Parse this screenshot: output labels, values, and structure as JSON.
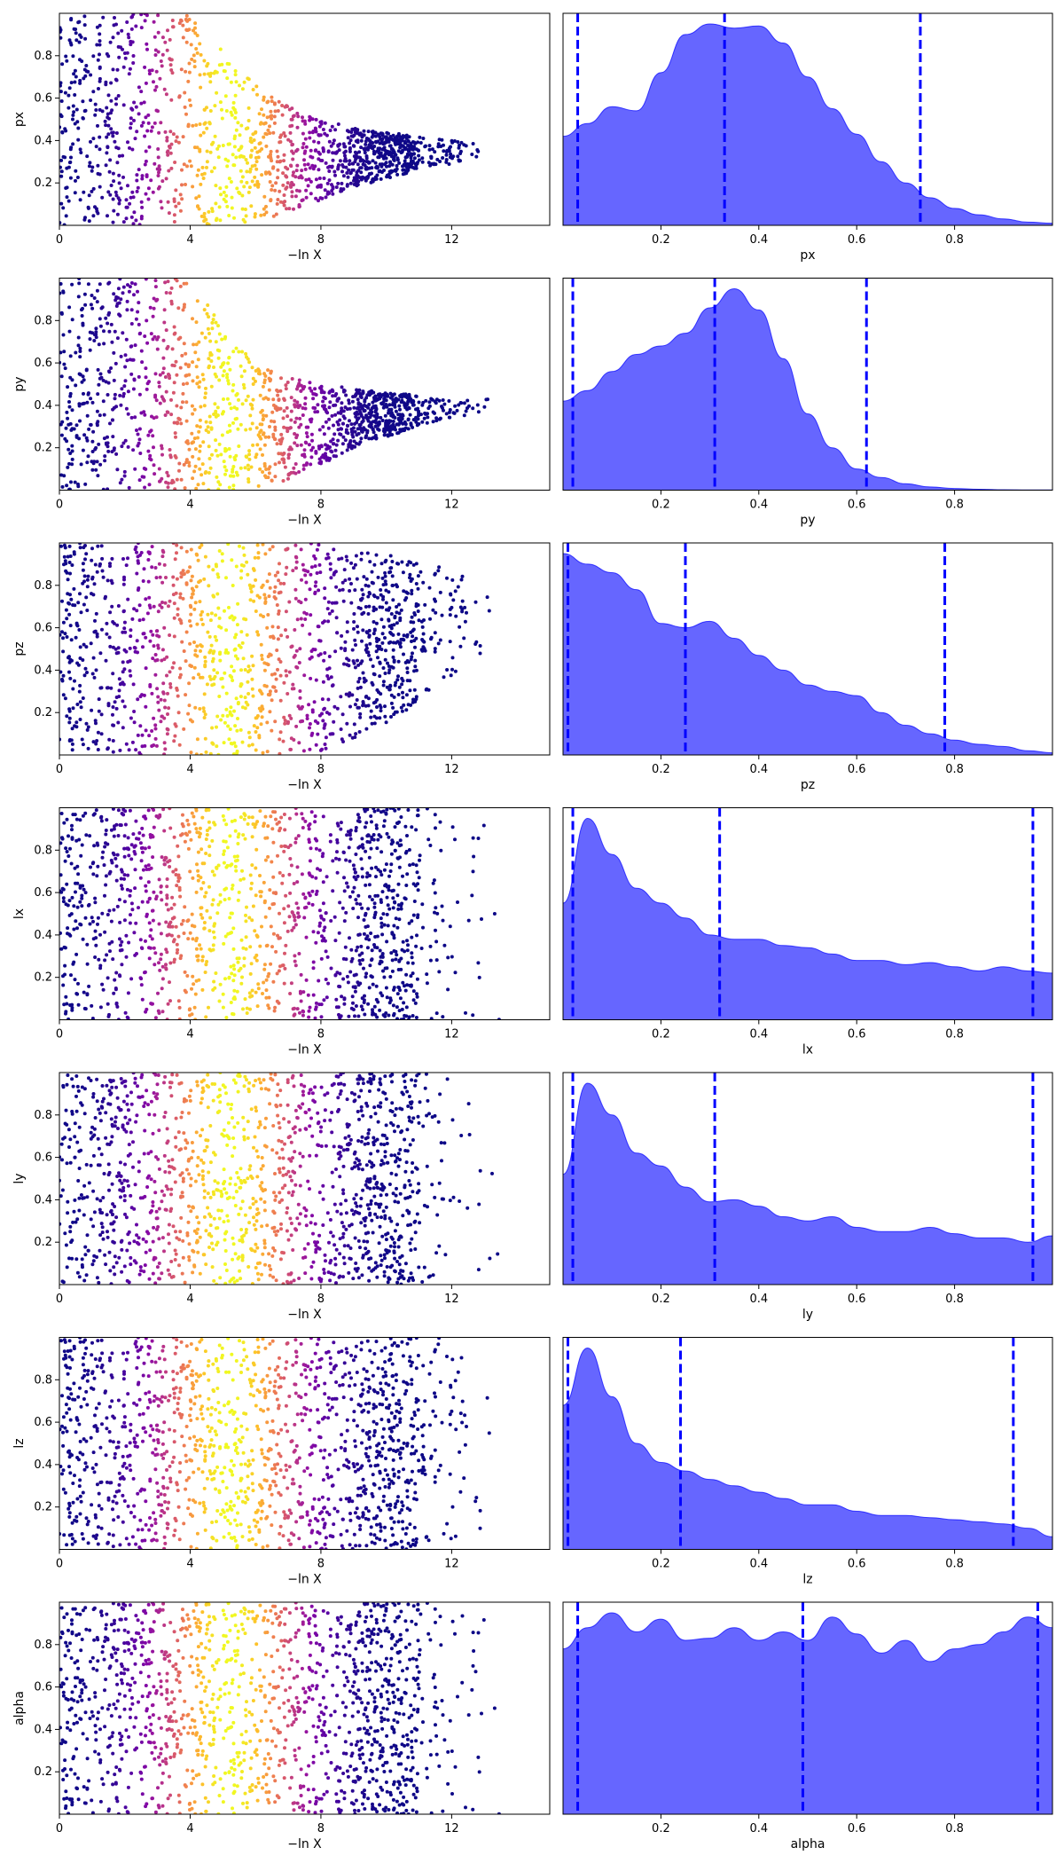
{
  "colors": {
    "kde_fill": "#0000ff",
    "kde_fill_opacity": 0.6,
    "quantile_line": "#0000ff",
    "scatter_colormap": "plasma",
    "axes": "#000000"
  },
  "chart_data": [
    {
      "type": "scatter",
      "name": "px",
      "xlabel": "−ln X",
      "ylabel": "px",
      "xlim": [
        0,
        15
      ],
      "ylim": [
        0,
        1
      ],
      "xticks": [
        "0",
        "4",
        "8",
        "12"
      ],
      "yticks": [
        "0.2",
        "0.4",
        "0.6",
        "0.8"
      ],
      "colormap": "plasma",
      "trend": {
        "x": [
          0,
          4,
          5,
          6,
          7,
          8,
          9,
          10,
          11,
          12,
          13,
          14,
          15
        ],
        "y_min": [
          0,
          0,
          0,
          0.02,
          0.06,
          0.12,
          0.18,
          0.22,
          0.26,
          0.29,
          0.31,
          0.33,
          0.34
        ],
        "y_max": [
          1,
          1,
          0.82,
          0.66,
          0.56,
          0.5,
          0.46,
          0.44,
          0.42,
          0.4,
          0.38,
          0.37,
          0.35
        ]
      }
    },
    {
      "type": "area",
      "name": "px",
      "xlabel": "px",
      "xlim": [
        0,
        1
      ],
      "xticks": [
        "0.2",
        "0.4",
        "0.6",
        "0.8"
      ],
      "x": [
        0.0,
        0.05,
        0.1,
        0.15,
        0.2,
        0.25,
        0.3,
        0.35,
        0.4,
        0.45,
        0.5,
        0.55,
        0.6,
        0.65,
        0.7,
        0.75,
        0.8,
        0.85,
        0.9,
        0.95,
        1.0
      ],
      "density": [
        0.42,
        0.48,
        0.56,
        0.54,
        0.72,
        0.9,
        0.95,
        0.93,
        0.94,
        0.86,
        0.7,
        0.55,
        0.43,
        0.3,
        0.2,
        0.13,
        0.08,
        0.05,
        0.03,
        0.015,
        0.01
      ],
      "quantiles": [
        0.03,
        0.33,
        0.73
      ]
    },
    {
      "type": "scatter",
      "name": "py",
      "xlabel": "−ln X",
      "ylabel": "py",
      "xlim": [
        0,
        15
      ],
      "ylim": [
        0,
        1
      ],
      "xticks": [
        "0",
        "4",
        "8",
        "12"
      ],
      "yticks": [
        "0.2",
        "0.4",
        "0.6",
        "0.8"
      ],
      "colormap": "plasma",
      "trend": {
        "x": [
          0,
          4,
          5,
          6,
          7,
          8,
          9,
          10,
          11,
          12,
          13,
          14,
          15
        ],
        "y_min": [
          0,
          0,
          0,
          0,
          0.05,
          0.12,
          0.2,
          0.25,
          0.3,
          0.34,
          0.37,
          0.39,
          0.4
        ],
        "y_max": [
          1,
          1,
          0.78,
          0.6,
          0.53,
          0.5,
          0.48,
          0.46,
          0.45,
          0.44,
          0.43,
          0.42,
          0.41
        ]
      }
    },
    {
      "type": "area",
      "name": "py",
      "xlabel": "py",
      "xlim": [
        0,
        1
      ],
      "xticks": [
        "0.2",
        "0.4",
        "0.6",
        "0.8"
      ],
      "x": [
        0.0,
        0.05,
        0.1,
        0.15,
        0.2,
        0.25,
        0.3,
        0.35,
        0.4,
        0.45,
        0.5,
        0.55,
        0.6,
        0.65,
        0.7,
        0.75,
        0.8,
        0.85,
        0.9,
        0.95,
        1.0
      ],
      "density": [
        0.42,
        0.47,
        0.56,
        0.64,
        0.68,
        0.74,
        0.86,
        0.95,
        0.85,
        0.62,
        0.36,
        0.2,
        0.1,
        0.06,
        0.03,
        0.015,
        0.008,
        0.004,
        0.002,
        0.001,
        0.001
      ],
      "quantiles": [
        0.02,
        0.31,
        0.62
      ]
    },
    {
      "type": "scatter",
      "name": "pz",
      "xlabel": "−ln X",
      "ylabel": "pz",
      "xlim": [
        0,
        15
      ],
      "ylim": [
        0,
        1
      ],
      "xticks": [
        "0",
        "4",
        "8",
        "12"
      ],
      "yticks": [
        "0.2",
        "0.4",
        "0.6",
        "0.8"
      ],
      "colormap": "plasma",
      "trend": {
        "x": [
          0,
          4,
          5,
          6,
          7,
          8,
          9,
          10,
          11,
          12,
          13,
          14,
          15
        ],
        "y_min": [
          0,
          0,
          0,
          0,
          0,
          0.02,
          0.08,
          0.15,
          0.25,
          0.35,
          0.45,
          0.55,
          0.65
        ],
        "y_max": [
          1,
          1,
          1,
          1,
          1,
          1,
          0.98,
          0.95,
          0.9,
          0.88,
          0.86,
          0.84,
          0.82
        ]
      }
    },
    {
      "type": "area",
      "name": "pz",
      "xlabel": "pz",
      "xlim": [
        0,
        1
      ],
      "xticks": [
        "0.2",
        "0.4",
        "0.6",
        "0.8"
      ],
      "x": [
        0.0,
        0.05,
        0.1,
        0.15,
        0.2,
        0.25,
        0.3,
        0.35,
        0.4,
        0.45,
        0.5,
        0.55,
        0.6,
        0.65,
        0.7,
        0.75,
        0.8,
        0.85,
        0.9,
        0.95,
        1.0
      ],
      "density": [
        0.95,
        0.9,
        0.86,
        0.78,
        0.62,
        0.6,
        0.63,
        0.55,
        0.47,
        0.4,
        0.33,
        0.3,
        0.28,
        0.2,
        0.14,
        0.1,
        0.07,
        0.05,
        0.04,
        0.02,
        0.01
      ],
      "quantiles": [
        0.01,
        0.25,
        0.78
      ]
    },
    {
      "type": "scatter",
      "name": "lx",
      "xlabel": "−ln X",
      "ylabel": "lx",
      "xlim": [
        0,
        15
      ],
      "ylim": [
        0,
        1
      ],
      "xticks": [
        "0",
        "4",
        "8",
        "12"
      ],
      "yticks": [
        "0.2",
        "0.4",
        "0.6",
        "0.8"
      ],
      "colormap": "plasma",
      "trend": {
        "x": [
          0,
          4,
          5,
          6,
          7,
          8,
          9,
          10,
          11,
          12,
          13,
          14,
          15
        ],
        "y_min": [
          0,
          0,
          0,
          0,
          0,
          0,
          0,
          0,
          0,
          0,
          0,
          0,
          0
        ],
        "y_max": [
          1,
          1,
          1,
          1,
          1,
          1,
          1,
          1,
          1,
          1,
          1,
          1,
          1
        ]
      }
    },
    {
      "type": "area",
      "name": "lx",
      "xlabel": "lx",
      "xlim": [
        0,
        1
      ],
      "xticks": [
        "0.2",
        "0.4",
        "0.6",
        "0.8"
      ],
      "x": [
        0.0,
        0.05,
        0.1,
        0.15,
        0.2,
        0.25,
        0.3,
        0.35,
        0.4,
        0.45,
        0.5,
        0.55,
        0.6,
        0.65,
        0.7,
        0.75,
        0.8,
        0.85,
        0.9,
        0.95,
        1.0
      ],
      "density": [
        0.55,
        0.95,
        0.78,
        0.62,
        0.55,
        0.48,
        0.4,
        0.38,
        0.38,
        0.35,
        0.34,
        0.31,
        0.28,
        0.28,
        0.26,
        0.27,
        0.25,
        0.23,
        0.25,
        0.23,
        0.22
      ],
      "quantiles": [
        0.02,
        0.32,
        0.96
      ]
    },
    {
      "type": "scatter",
      "name": "ly",
      "xlabel": "−ln X",
      "ylabel": "ly",
      "xlim": [
        0,
        15
      ],
      "ylim": [
        0,
        1
      ],
      "xticks": [
        "0",
        "4",
        "8",
        "12"
      ],
      "yticks": [
        "0.2",
        "0.4",
        "0.6",
        "0.8"
      ],
      "colormap": "plasma",
      "trend": {
        "x": [
          0,
          4,
          5,
          6,
          7,
          8,
          9,
          10,
          11,
          12,
          13,
          14,
          15
        ],
        "y_min": [
          0,
          0,
          0,
          0,
          0,
          0,
          0,
          0,
          0,
          0,
          0,
          0,
          0
        ],
        "y_max": [
          1,
          1,
          1,
          1,
          1,
          1,
          1,
          1,
          1,
          1,
          1,
          1,
          1
        ]
      }
    },
    {
      "type": "area",
      "name": "ly",
      "xlabel": "ly",
      "xlim": [
        0,
        1
      ],
      "xticks": [
        "0.2",
        "0.4",
        "0.6",
        "0.8"
      ],
      "x": [
        0.0,
        0.05,
        0.1,
        0.15,
        0.2,
        0.25,
        0.3,
        0.35,
        0.4,
        0.45,
        0.5,
        0.55,
        0.6,
        0.65,
        0.7,
        0.75,
        0.8,
        0.85,
        0.9,
        0.95,
        1.0
      ],
      "density": [
        0.52,
        0.95,
        0.8,
        0.62,
        0.56,
        0.46,
        0.39,
        0.4,
        0.37,
        0.32,
        0.3,
        0.32,
        0.27,
        0.25,
        0.25,
        0.27,
        0.24,
        0.22,
        0.22,
        0.2,
        0.23
      ],
      "quantiles": [
        0.02,
        0.31,
        0.96
      ]
    },
    {
      "type": "scatter",
      "name": "lz",
      "xlabel": "−ln X",
      "ylabel": "lz",
      "xlim": [
        0,
        15
      ],
      "ylim": [
        0,
        1
      ],
      "xticks": [
        "0",
        "4",
        "8",
        "12"
      ],
      "yticks": [
        "0.2",
        "0.4",
        "0.6",
        "0.8"
      ],
      "colormap": "plasma",
      "trend": {
        "x": [
          0,
          4,
          5,
          6,
          7,
          8,
          9,
          10,
          11,
          12,
          13,
          14,
          15
        ],
        "y_min": [
          0,
          0,
          0,
          0,
          0,
          0,
          0,
          0,
          0,
          0,
          0,
          0,
          0
        ],
        "y_max": [
          1,
          1,
          1,
          1,
          1,
          1,
          1,
          1,
          1,
          1,
          1,
          1,
          1
        ]
      }
    },
    {
      "type": "area",
      "name": "lz",
      "xlabel": "lz",
      "xlim": [
        0,
        1
      ],
      "xticks": [
        "0.2",
        "0.4",
        "0.6",
        "0.8"
      ],
      "x": [
        0.0,
        0.05,
        0.1,
        0.15,
        0.2,
        0.25,
        0.3,
        0.35,
        0.4,
        0.45,
        0.5,
        0.55,
        0.6,
        0.65,
        0.7,
        0.75,
        0.8,
        0.85,
        0.9,
        0.95,
        1.0
      ],
      "density": [
        0.68,
        0.95,
        0.72,
        0.5,
        0.41,
        0.37,
        0.33,
        0.3,
        0.27,
        0.24,
        0.21,
        0.21,
        0.18,
        0.16,
        0.16,
        0.15,
        0.14,
        0.13,
        0.12,
        0.1,
        0.06
      ],
      "quantiles": [
        0.01,
        0.24,
        0.92
      ]
    },
    {
      "type": "scatter",
      "name": "alpha",
      "xlabel": "−ln X",
      "ylabel": "alpha",
      "xlim": [
        0,
        15
      ],
      "ylim": [
        0,
        1
      ],
      "xticks": [
        "0",
        "4",
        "8",
        "12"
      ],
      "yticks": [
        "0.2",
        "0.4",
        "0.6",
        "0.8"
      ],
      "colormap": "plasma",
      "trend": {
        "x": [
          0,
          4,
          5,
          6,
          7,
          8,
          9,
          10,
          11,
          12,
          13,
          14,
          15
        ],
        "y_min": [
          0,
          0,
          0,
          0,
          0,
          0,
          0,
          0,
          0,
          0,
          0,
          0,
          0
        ],
        "y_max": [
          1,
          1,
          1,
          1,
          1,
          1,
          1,
          1,
          1,
          1,
          1,
          1,
          1
        ]
      }
    },
    {
      "type": "area",
      "name": "alpha",
      "xlabel": "alpha",
      "xlim": [
        0,
        1
      ],
      "xticks": [
        "0.2",
        "0.4",
        "0.6",
        "0.8"
      ],
      "x": [
        0.0,
        0.05,
        0.1,
        0.15,
        0.2,
        0.25,
        0.3,
        0.35,
        0.4,
        0.45,
        0.5,
        0.55,
        0.6,
        0.65,
        0.7,
        0.75,
        0.8,
        0.85,
        0.9,
        0.95,
        1.0
      ],
      "density": [
        0.78,
        0.88,
        0.95,
        0.86,
        0.92,
        0.82,
        0.83,
        0.88,
        0.82,
        0.86,
        0.82,
        0.93,
        0.85,
        0.76,
        0.82,
        0.72,
        0.78,
        0.8,
        0.86,
        0.93,
        0.88
      ],
      "quantiles": [
        0.03,
        0.49,
        0.97
      ]
    }
  ]
}
